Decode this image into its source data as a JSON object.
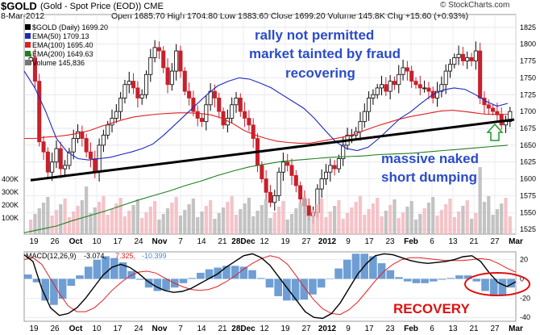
{
  "header": {
    "symbol": "$GOLD",
    "name": "(Gold - Spot Price (EOD)) CME",
    "date": "8-Mar-2012",
    "ohlc": "Open 1685.70  High 1704.80  Low 1683.60  Close 1699.20  Volume 145.8K  Chg +15.60 (+0.93%)",
    "copyright": "© StockCharts.com"
  },
  "legend": {
    "daily": "$GOLD (Daily) 1699.20",
    "ema50": "EMA(50) 1709.13",
    "ema100": "EMA(100) 1695.40",
    "ema200": "EMA(200) 1649.63",
    "volume": "Volume 145,836"
  },
  "annotations": {
    "line1": "rally not permitted",
    "line2": "market tainted by fraud",
    "line3": "recovering",
    "naked1": "massive naked",
    "naked2": "short dumping",
    "recovery": "RECOVERY"
  },
  "macd_label": {
    "name": "MACD(12,26,9)",
    "v1": "-3.074,",
    "v2": "7.325,",
    "v3": "-10.399"
  },
  "colors": {
    "up": "#000000",
    "down": "#c8202b",
    "ema50": "#1a28c0",
    "ema100": "#e02020",
    "ema200": "#208020",
    "volume_up": "#f2b8be",
    "volume_down": "#b8b8b8",
    "annotation": "#2b4cc8",
    "recovery": "#e01010",
    "histogram": "#4a86c8"
  },
  "chart_data": [
    {
      "type": "candlestick",
      "title": "$GOLD (Daily)",
      "x_tick_labels": [
        "19",
        "26",
        "Oct",
        "10",
        "17",
        "24",
        "Nov",
        "7",
        "14",
        "21",
        "28Dec",
        "12",
        "19",
        "27",
        "2012",
        "9",
        "17",
        "23",
        "Feb",
        "6",
        "13",
        "21",
        "27",
        "Mar"
      ],
      "y_ticks": [
        1525,
        1550,
        1575,
        1600,
        1625,
        1650,
        1675,
        1700,
        1725,
        1750,
        1775,
        1800,
        1825
      ],
      "ylim": [
        1518,
        1832
      ],
      "volume_ticks": [
        "100K",
        "200K",
        "300K",
        "400K"
      ],
      "close": [
        1780,
        1745,
        1655,
        1640,
        1610,
        1625,
        1645,
        1615,
        1620,
        1640,
        1660,
        1670,
        1660,
        1640,
        1630,
        1610,
        1650,
        1665,
        1680,
        1690,
        1700,
        1720,
        1740,
        1745,
        1735,
        1720,
        1725,
        1755,
        1780,
        1795,
        1790,
        1765,
        1740,
        1760,
        1790,
        1760,
        1730,
        1720,
        1700,
        1690,
        1685,
        1710,
        1730,
        1720,
        1700,
        1680,
        1690,
        1710,
        1720,
        1700,
        1690,
        1680,
        1660,
        1620,
        1600,
        1580,
        1565,
        1575,
        1610,
        1625,
        1620,
        1605,
        1590,
        1570,
        1560,
        1545,
        1550,
        1585,
        1600,
        1610,
        1620,
        1615,
        1630,
        1650,
        1665,
        1665,
        1670,
        1685,
        1700,
        1720,
        1725,
        1735,
        1740,
        1730,
        1745,
        1740,
        1755,
        1765,
        1760,
        1745,
        1740,
        1735,
        1735,
        1730,
        1720,
        1730,
        1740,
        1760,
        1770,
        1780,
        1785,
        1775,
        1780,
        1775,
        1790,
        1720,
        1710,
        1705,
        1700,
        1695,
        1680,
        1685,
        1700
      ],
      "ema50": [
        1760,
        1735,
        1700,
        1660,
        1640,
        1630,
        1628,
        1630,
        1632,
        1636,
        1640,
        1645,
        1652,
        1665,
        1680,
        1695,
        1710,
        1725,
        1738,
        1745,
        1750,
        1748,
        1742,
        1735,
        1725,
        1715,
        1705,
        1690,
        1672,
        1655,
        1645,
        1642,
        1647,
        1660,
        1675,
        1690,
        1700,
        1713,
        1725,
        1732,
        1735,
        1733,
        1725,
        1715,
        1708,
        1712
      ],
      "ema100": [
        1660,
        1660,
        1662,
        1663,
        1665,
        1668,
        1672,
        1678,
        1683,
        1688,
        1692,
        1694,
        1696,
        1697,
        1698,
        1698,
        1697,
        1695,
        1690,
        1682,
        1672,
        1665,
        1660,
        1656,
        1654,
        1653,
        1653,
        1656,
        1659,
        1662,
        1666,
        1672,
        1678,
        1683,
        1688,
        1692,
        1695,
        1698,
        1701,
        1702,
        1700,
        1698,
        1696,
        1696,
        1696
      ],
      "ema200": [
        1520,
        1525,
        1530,
        1538,
        1545,
        1552,
        1560,
        1568,
        1575,
        1582,
        1590,
        1597,
        1605,
        1612,
        1618,
        1622,
        1626,
        1628,
        1630,
        1632,
        1633,
        1634,
        1636,
        1637,
        1638,
        1640,
        1642,
        1644,
        1646,
        1648,
        1650
      ],
      "trendline": [
        [
          0,
          1598
        ],
        [
          1,
          1688
        ]
      ]
    },
    {
      "type": "line",
      "title": "MACD(12,26,9)",
      "y_ticks": [
        20,
        0,
        -20,
        -40
      ],
      "ylim": [
        -44,
        28
      ],
      "macd": [
        25,
        18,
        -10,
        -30,
        -38,
        -36,
        -30,
        -20,
        -8,
        4,
        12,
        15,
        12,
        6,
        -2,
        -8,
        -12,
        -14,
        -13,
        -10,
        -5,
        0,
        5,
        12,
        18,
        24,
        26,
        22,
        14,
        2,
        -10,
        -22,
        -34,
        -40,
        -41,
        -36,
        -25,
        -10,
        5,
        16,
        24,
        26,
        25,
        22,
        19,
        17,
        16,
        17,
        18,
        20,
        23,
        24,
        18,
        6,
        -4,
        -8,
        -3
      ],
      "signal": [
        20,
        22,
        15,
        0,
        -15,
        -28,
        -34,
        -34,
        -30,
        -22,
        -12,
        -4,
        3,
        7,
        8,
        6,
        1,
        -4,
        -8,
        -11,
        -12,
        -11,
        -8,
        -3,
        3,
        10,
        16,
        21,
        24,
        22,
        15,
        3,
        -10,
        -22,
        -31,
        -36,
        -37,
        -32,
        -24,
        -13,
        -2,
        8,
        15,
        20,
        22,
        22,
        21,
        20,
        19,
        19,
        19,
        20,
        21,
        20,
        16,
        11,
        7
      ],
      "histogram_note": "macd minus signal",
      "last_values": [
        -3.074,
        7.325,
        -10.399
      ]
    }
  ]
}
